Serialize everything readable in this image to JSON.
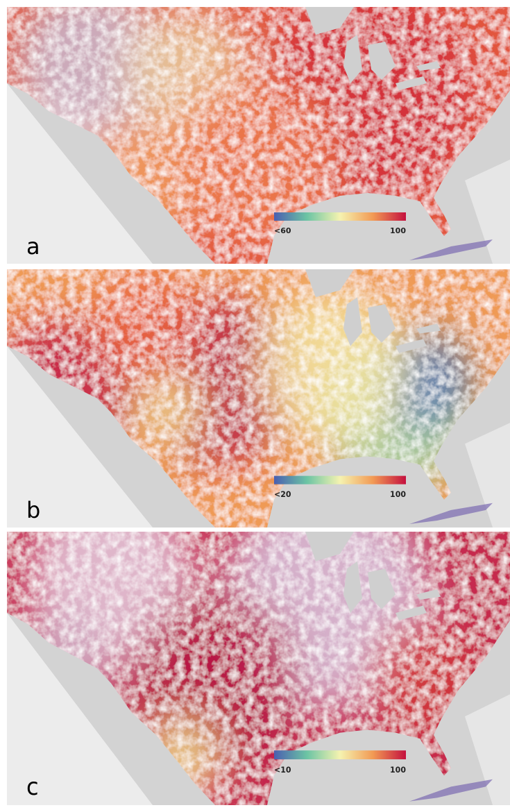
{
  "panels": [
    {
      "label": "a",
      "colorbar": {
        "min_label": "<60",
        "max_label": "100"
      }
    },
    {
      "label": "b",
      "colorbar": {
        "min_label": "<20",
        "max_label": "100"
      }
    },
    {
      "label": "c",
      "colorbar": {
        "min_label": "<10",
        "max_label": "100"
      }
    }
  ]
}
